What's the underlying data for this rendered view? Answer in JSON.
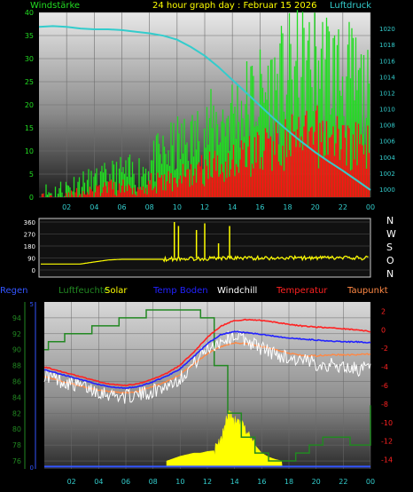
{
  "colors": {
    "wind": "#22dd22",
    "gust": "#ff1111",
    "pressure": "#33cccc",
    "direction": "#ffff00",
    "rain": "#3355ff",
    "humidity": "#228822",
    "solar": "#ffff00",
    "soiltemp": "#2222ff",
    "windchill": "#ffffff",
    "temperature": "#ff2222",
    "dewpoint": "#ff8844",
    "title": "#ffff00"
  },
  "chart_data": [
    {
      "type": "line",
      "title": "24 hour graph day : Februar 15 2026",
      "left_label": "Windstärke",
      "right_label": "Luftdruck",
      "x_ticks": [
        "02",
        "04",
        "06",
        "08",
        "10",
        "12",
        "14",
        "16",
        "18",
        "20",
        "22",
        "00"
      ],
      "x_range_hours": [
        0,
        24
      ],
      "ylim_left": [
        0,
        40
      ],
      "y_ticks_left": [
        0,
        5,
        10,
        15,
        20,
        25,
        30,
        35,
        40
      ],
      "ylim_right": [
        999,
        1022
      ],
      "y_ticks_right": [
        1000,
        1002,
        1004,
        1006,
        1008,
        1010,
        1012,
        1014,
        1016,
        1018,
        1020
      ],
      "series": [
        {
          "key": "wind",
          "x": [
            0,
            1,
            2,
            3,
            4,
            5,
            6,
            7,
            8,
            9,
            10,
            11,
            12,
            13,
            14,
            15,
            16,
            17,
            18,
            19,
            20,
            21,
            22,
            23,
            24
          ],
          "values": [
            1,
            1,
            2,
            3,
            3,
            4,
            5,
            5,
            7,
            9,
            11,
            12,
            14,
            16,
            18,
            20,
            22,
            23,
            26,
            27,
            28,
            28,
            26,
            24,
            20
          ]
        },
        {
          "key": "gust",
          "x": [
            0,
            1,
            2,
            3,
            4,
            5,
            6,
            7,
            8,
            9,
            10,
            11,
            12,
            13,
            14,
            15,
            16,
            17,
            18,
            19,
            20,
            21,
            22,
            23,
            24
          ],
          "values": [
            0,
            0,
            0,
            1,
            1,
            2,
            2,
            2,
            3,
            3,
            4,
            5,
            6,
            7,
            8,
            9,
            10,
            11,
            12,
            12,
            13,
            13,
            12,
            11,
            10
          ]
        },
        {
          "key": "pressure",
          "x": [
            0,
            1,
            2,
            3,
            4,
            5,
            6,
            7,
            8,
            9,
            10,
            11,
            12,
            13,
            14,
            15,
            16,
            17,
            18,
            19,
            20,
            21,
            22,
            23,
            24
          ],
          "values": [
            1020.2,
            1020.3,
            1020.2,
            1020.0,
            1019.9,
            1019.9,
            1019.8,
            1019.6,
            1019.4,
            1019.1,
            1018.6,
            1017.7,
            1016.6,
            1015.2,
            1013.6,
            1012.0,
            1010.4,
            1008.8,
            1007.3,
            1005.9,
            1004.6,
            1003.4,
            1002.3,
            1001.1,
            999.9
          ]
        }
      ]
    },
    {
      "type": "line",
      "title": "",
      "y_ticks_left": [
        0,
        90,
        180,
        270,
        360
      ],
      "ylim_left": [
        0,
        360
      ],
      "right_labels": [
        "N",
        "W",
        "S",
        "O",
        "N"
      ],
      "x_range_hours": [
        0,
        24
      ],
      "series": [
        {
          "key": "direction",
          "x": [
            0,
            1,
            2,
            3,
            4,
            5,
            6,
            7,
            8,
            9,
            10,
            11,
            12,
            13,
            14,
            15,
            16,
            17,
            18,
            19,
            20,
            21,
            22,
            23,
            24
          ],
          "values": [
            45,
            45,
            45,
            45,
            60,
            75,
            80,
            80,
            80,
            80,
            85,
            85,
            85,
            90,
            90,
            90,
            90,
            90,
            90,
            90,
            90,
            90,
            90,
            90,
            90
          ]
        }
      ]
    },
    {
      "type": "line",
      "title": "",
      "legend": [
        "Regen",
        "Luftfeuchte",
        "Solar",
        "Temp Boden",
        "Windchill",
        "Temperatur",
        "Taupunkt"
      ],
      "x_ticks": [
        "02",
        "04",
        "06",
        "08",
        "10",
        "12",
        "14",
        "16",
        "18",
        "20",
        "22",
        "00"
      ],
      "x_range_hours": [
        0,
        24
      ],
      "y_ticks_left": [
        76,
        78,
        80,
        82,
        84,
        86,
        88,
        90,
        92,
        94
      ],
      "ylim_left": [
        75,
        96
      ],
      "y_ticks_right": [
        2,
        0,
        -2,
        -4,
        -6,
        -8,
        -10,
        -12,
        -14
      ],
      "ylim_right": [
        -15,
        3
      ],
      "rain_axis_ticks": [
        "0",
        "5"
      ],
      "series": [
        {
          "key": "humidity",
          "axis": "left",
          "x": [
            0,
            0.3,
            1.5,
            2.5,
            3.5,
            4.5,
            5.5,
            6.5,
            7.5,
            8.5,
            9,
            10.5,
            11.5,
            12.5,
            13.5,
            14.5,
            15.5,
            16.5,
            17.5,
            18.5,
            19.5,
            20.5,
            21.5,
            22.5,
            23,
            24
          ],
          "values": [
            90,
            91,
            92,
            92,
            93,
            93,
            94,
            94,
            95,
            95,
            95,
            95,
            94,
            88,
            82,
            79,
            77,
            76,
            76,
            77,
            78,
            79,
            79,
            78,
            78,
            83
          ]
        },
        {
          "key": "temperature",
          "axis": "right",
          "x": [
            0,
            1,
            2,
            3,
            4,
            5,
            6,
            7,
            8,
            9,
            10,
            11,
            12,
            13,
            14,
            15,
            16,
            17,
            18,
            19,
            20,
            21,
            22,
            23,
            24
          ],
          "values": [
            -4,
            -4.4,
            -4.8,
            -5.2,
            -5.6,
            -5.9,
            -6,
            -5.8,
            -5.3,
            -4.7,
            -3.8,
            -2.4,
            -0.8,
            0.4,
            1.0,
            1.1,
            1.0,
            0.8,
            0.6,
            0.4,
            0.3,
            0.2,
            0.1,
            0,
            -0.2
          ]
        },
        {
          "key": "soiltemp",
          "axis": "right",
          "x": [
            0,
            1,
            2,
            3,
            4,
            5,
            6,
            7,
            8,
            9,
            10,
            11,
            12,
            13,
            14,
            15,
            16,
            17,
            18,
            19,
            20,
            21,
            22,
            23,
            24
          ],
          "values": [
            -4.3,
            -4.7,
            -5.1,
            -5.5,
            -5.9,
            -6.2,
            -6.3,
            -6.1,
            -5.6,
            -5.0,
            -4.2,
            -2.9,
            -1.5,
            -0.5,
            -0.2,
            -0.3,
            -0.5,
            -0.7,
            -0.9,
            -1.0,
            -1.1,
            -1.2,
            -1.3,
            -1.3,
            -1.4
          ]
        },
        {
          "key": "dewpoint",
          "axis": "right",
          "x": [
            0,
            1,
            2,
            3,
            4,
            5,
            6,
            7,
            8,
            9,
            10,
            11,
            12,
            13,
            14,
            15,
            16,
            17,
            18,
            19,
            20,
            21,
            22,
            23,
            24
          ],
          "values": [
            -5.0,
            -5.4,
            -5.8,
            -6.2,
            -6.5,
            -6.7,
            -6.8,
            -6.6,
            -6.1,
            -5.6,
            -4.8,
            -3.7,
            -2.6,
            -1.8,
            -1.4,
            -1.5,
            -1.8,
            -2.1,
            -2.5,
            -2.8,
            -2.8,
            -2.7,
            -2.7,
            -2.7,
            -2.6
          ]
        },
        {
          "key": "windchill",
          "axis": "right",
          "x": [
            0,
            1,
            2,
            3,
            4,
            5,
            6,
            7,
            8,
            9,
            10,
            11,
            12,
            13,
            14,
            15,
            16,
            17,
            18,
            19,
            20,
            21,
            22,
            23,
            24
          ],
          "values": [
            -4.8,
            -5.4,
            -5.8,
            -6.2,
            -6.6,
            -7,
            -7.2,
            -7,
            -6.6,
            -6,
            -5.2,
            -3.6,
            -2,
            -1.2,
            -0.6,
            -1.2,
            -2,
            -2.6,
            -3,
            -3.4,
            -3.6,
            -3.8,
            -4,
            -4.2,
            -4.2
          ]
        },
        {
          "key": "solar",
          "axis": "left",
          "x": [
            9,
            9.5,
            10,
            10.5,
            11,
            11.5,
            12,
            12.5,
            13,
            13.5,
            14,
            14.5,
            15,
            15.5,
            16,
            16.5,
            17,
            17.5
          ],
          "values": [
            76,
            76.3,
            76.6,
            76.8,
            77,
            77,
            77.2,
            77.3,
            78.5,
            82,
            81,
            80.5,
            79.5,
            78,
            77,
            76.5,
            76.2,
            76
          ]
        },
        {
          "key": "rain",
          "axis": "left",
          "x": [
            0,
            24
          ],
          "values": [
            75.3,
            75.3
          ]
        }
      ]
    }
  ]
}
